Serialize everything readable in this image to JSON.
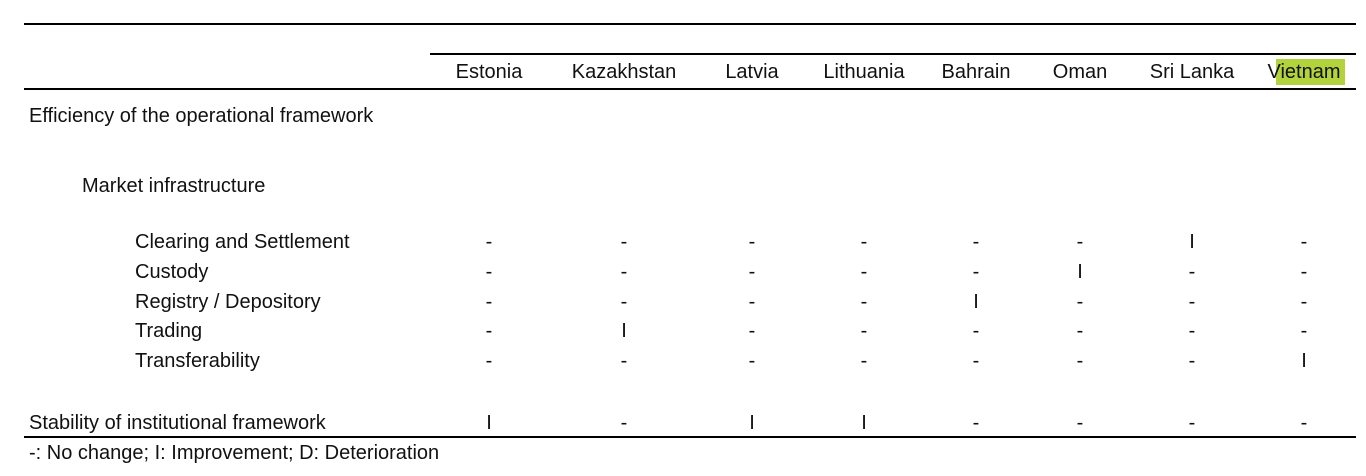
{
  "table": {
    "columns": [
      "Estonia",
      "Kazakhstan",
      "Latvia",
      "Lithuania",
      "Bahrain",
      "Oman",
      "Sri Lanka",
      "Vietnam"
    ],
    "sections": [
      {
        "label": "Efficiency of the operational framework",
        "subsections": [
          {
            "label": "Market infrastructure",
            "rows": [
              {
                "label": "Clearing and Settlement",
                "values": [
                  "-",
                  "-",
                  "-",
                  "-",
                  "-",
                  "-",
                  "I",
                  "-"
                ]
              },
              {
                "label": "Custody",
                "values": [
                  "-",
                  "-",
                  "-",
                  "-",
                  "-",
                  "I",
                  "-",
                  "-"
                ]
              },
              {
                "label": "Registry / Depository",
                "values": [
                  "-",
                  "-",
                  "-",
                  "-",
                  "I",
                  "-",
                  "-",
                  "-"
                ]
              },
              {
                "label": "Trading",
                "values": [
                  "-",
                  "I",
                  "-",
                  "-",
                  "-",
                  "-",
                  "-",
                  "-"
                ]
              },
              {
                "label": "Transferability",
                "values": [
                  "-",
                  "-",
                  "-",
                  "-",
                  "-",
                  "-",
                  "-",
                  "I"
                ]
              }
            ]
          }
        ]
      },
      {
        "label": "Stability of institutional framework",
        "values": [
          "I",
          "-",
          "I",
          "I",
          "-",
          "-",
          "-",
          "-"
        ]
      }
    ],
    "footnote": "-: No change; I: Improvement; D: Deterioration"
  }
}
